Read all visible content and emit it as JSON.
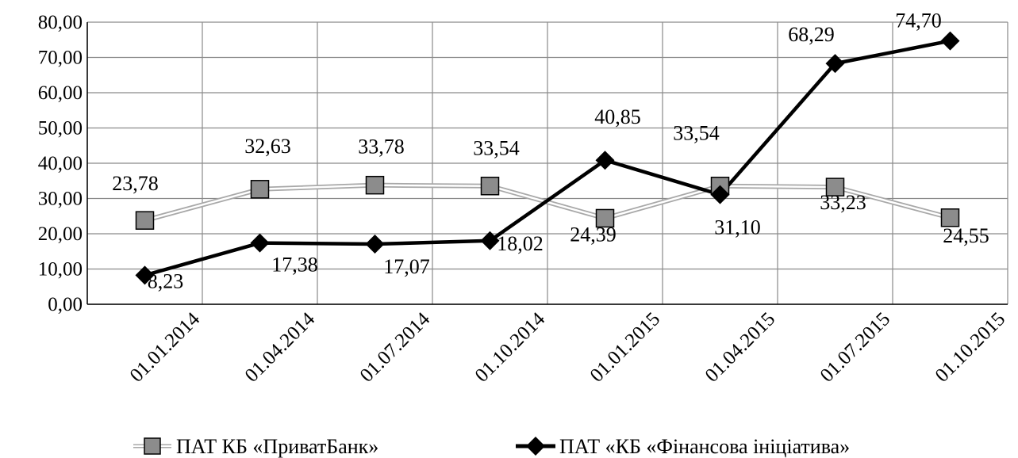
{
  "chart_data": {
    "type": "line",
    "categories": [
      "01.01.2014",
      "01.04.2014",
      "01.07.2014",
      "01.10.2014",
      "01.01.2015",
      "01.04.2015",
      "01.07.2015",
      "01.10.2015"
    ],
    "ylim": [
      0,
      80
    ],
    "yticks": [
      "0,00",
      "10,00",
      "20,00",
      "30,00",
      "40,00",
      "50,00",
      "60,00",
      "70,00",
      "80,00"
    ],
    "grid": true,
    "legend_position": "bottom",
    "series": [
      {
        "name": "ПАТ КБ «ПриватБанк»",
        "values": [
          23.78,
          32.63,
          33.78,
          33.54,
          24.39,
          33.54,
          33.23,
          24.55
        ],
        "labels": [
          "23,78",
          "32,63",
          "33,78",
          "33,54",
          "24,39",
          "33,54",
          "33,23",
          "24,55"
        ],
        "color": "#b5b5b5",
        "marker": "square"
      },
      {
        "name": "ПАТ «КБ «Фінансова ініціатива»",
        "values": [
          8.23,
          17.38,
          17.07,
          18.02,
          40.85,
          31.1,
          68.29,
          74.7
        ],
        "labels": [
          "8,23",
          "17,38",
          "17,07",
          "18,02",
          "40,85",
          "31,10",
          "68,29",
          "74,70"
        ],
        "color": "#000000",
        "marker": "diamond"
      }
    ]
  }
}
